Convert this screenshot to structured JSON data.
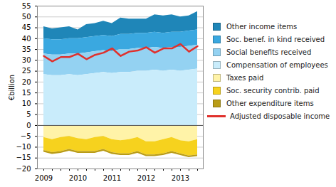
{
  "chart_data": {
    "type": "area",
    "stacked": true,
    "grid": true,
    "legend": "right",
    "y_label": "€billion",
    "categories": [
      "2009",
      null,
      null,
      null,
      "2010",
      null,
      null,
      null,
      "2011",
      null,
      null,
      null,
      "2012",
      null,
      null,
      null,
      "2013",
      null,
      null
    ],
    "ylim": [
      -20,
      55
    ],
    "yticks": [
      -20,
      -15,
      -10,
      -5,
      0,
      5,
      10,
      15,
      20,
      25,
      30,
      35,
      40,
      45,
      50,
      55
    ],
    "series": [
      {
        "name": "Other income items",
        "type": "area",
        "color": "#1f86b8",
        "values": [
          5.5,
          5,
          5.5,
          5.5,
          4,
          6,
          6,
          6.5,
          6,
          7.5,
          7,
          6.5,
          6.5,
          8,
          8,
          8,
          7,
          7,
          8.5
        ]
      },
      {
        "name": "Soc. benef. in kind received",
        "type": "area",
        "color": "#3aa8e0",
        "values": [
          7,
          7,
          7,
          7,
          7,
          7,
          7,
          7,
          7,
          7,
          7,
          7,
          7,
          7,
          7,
          7,
          7,
          7,
          7
        ]
      },
      {
        "name": "Social benefits received",
        "type": "area",
        "color": "#94d2f2",
        "values": [
          9.5,
          9.5,
          9.5,
          9.5,
          10,
          10,
          10,
          10,
          10,
          10.5,
          10.5,
          10.5,
          10.5,
          10.5,
          10.5,
          10.5,
          11,
          11,
          11
        ]
      },
      {
        "name": "Compensation of employees",
        "type": "area",
        "color": "#c9ecfb",
        "values": [
          23.5,
          23,
          23,
          23.5,
          23,
          23.5,
          24,
          24.5,
          24,
          24.5,
          24.5,
          25,
          25,
          25.5,
          25,
          25.5,
          25,
          25.5,
          26
        ]
      },
      {
        "name": "Taxes paid",
        "type": "area",
        "color": "#fff3a8",
        "values": [
          -5.5,
          -6.5,
          -5.5,
          -5,
          -6,
          -6.5,
          -5.5,
          -5,
          -6.5,
          -7,
          -6.5,
          -5.5,
          -7.5,
          -7.5,
          -6.5,
          -5.5,
          -7,
          -7.5,
          -6.5
        ]
      },
      {
        "name": "Soc. security contrib. paid",
        "type": "area",
        "color": "#f6d21e",
        "values": [
          -6,
          -6,
          -6.5,
          -6,
          -6,
          -5.5,
          -6.5,
          -6,
          -6,
          -6,
          -6.5,
          -6.5,
          -6,
          -6,
          -6.5,
          -6.5,
          -6,
          -6.5,
          -7
        ]
      },
      {
        "name": "Other expenditure items",
        "type": "area",
        "color": "#b99c17",
        "values": [
          -0.8,
          -0.8,
          -0.8,
          -0.8,
          -0.8,
          -0.8,
          -0.8,
          -0.8,
          -0.8,
          -0.8,
          -0.8,
          -0.8,
          -0.8,
          -0.8,
          -0.8,
          -0.8,
          -0.8,
          -0.8,
          -0.8
        ]
      },
      {
        "name": "Adjusted disposable income",
        "type": "line",
        "color": "#e0302c",
        "values": [
          32,
          29.5,
          31.5,
          31.5,
          33,
          30.5,
          32.5,
          33.5,
          35.5,
          32,
          34,
          34.5,
          36,
          33.5,
          35.5,
          35.5,
          37.5,
          34,
          36.5
        ]
      }
    ]
  }
}
